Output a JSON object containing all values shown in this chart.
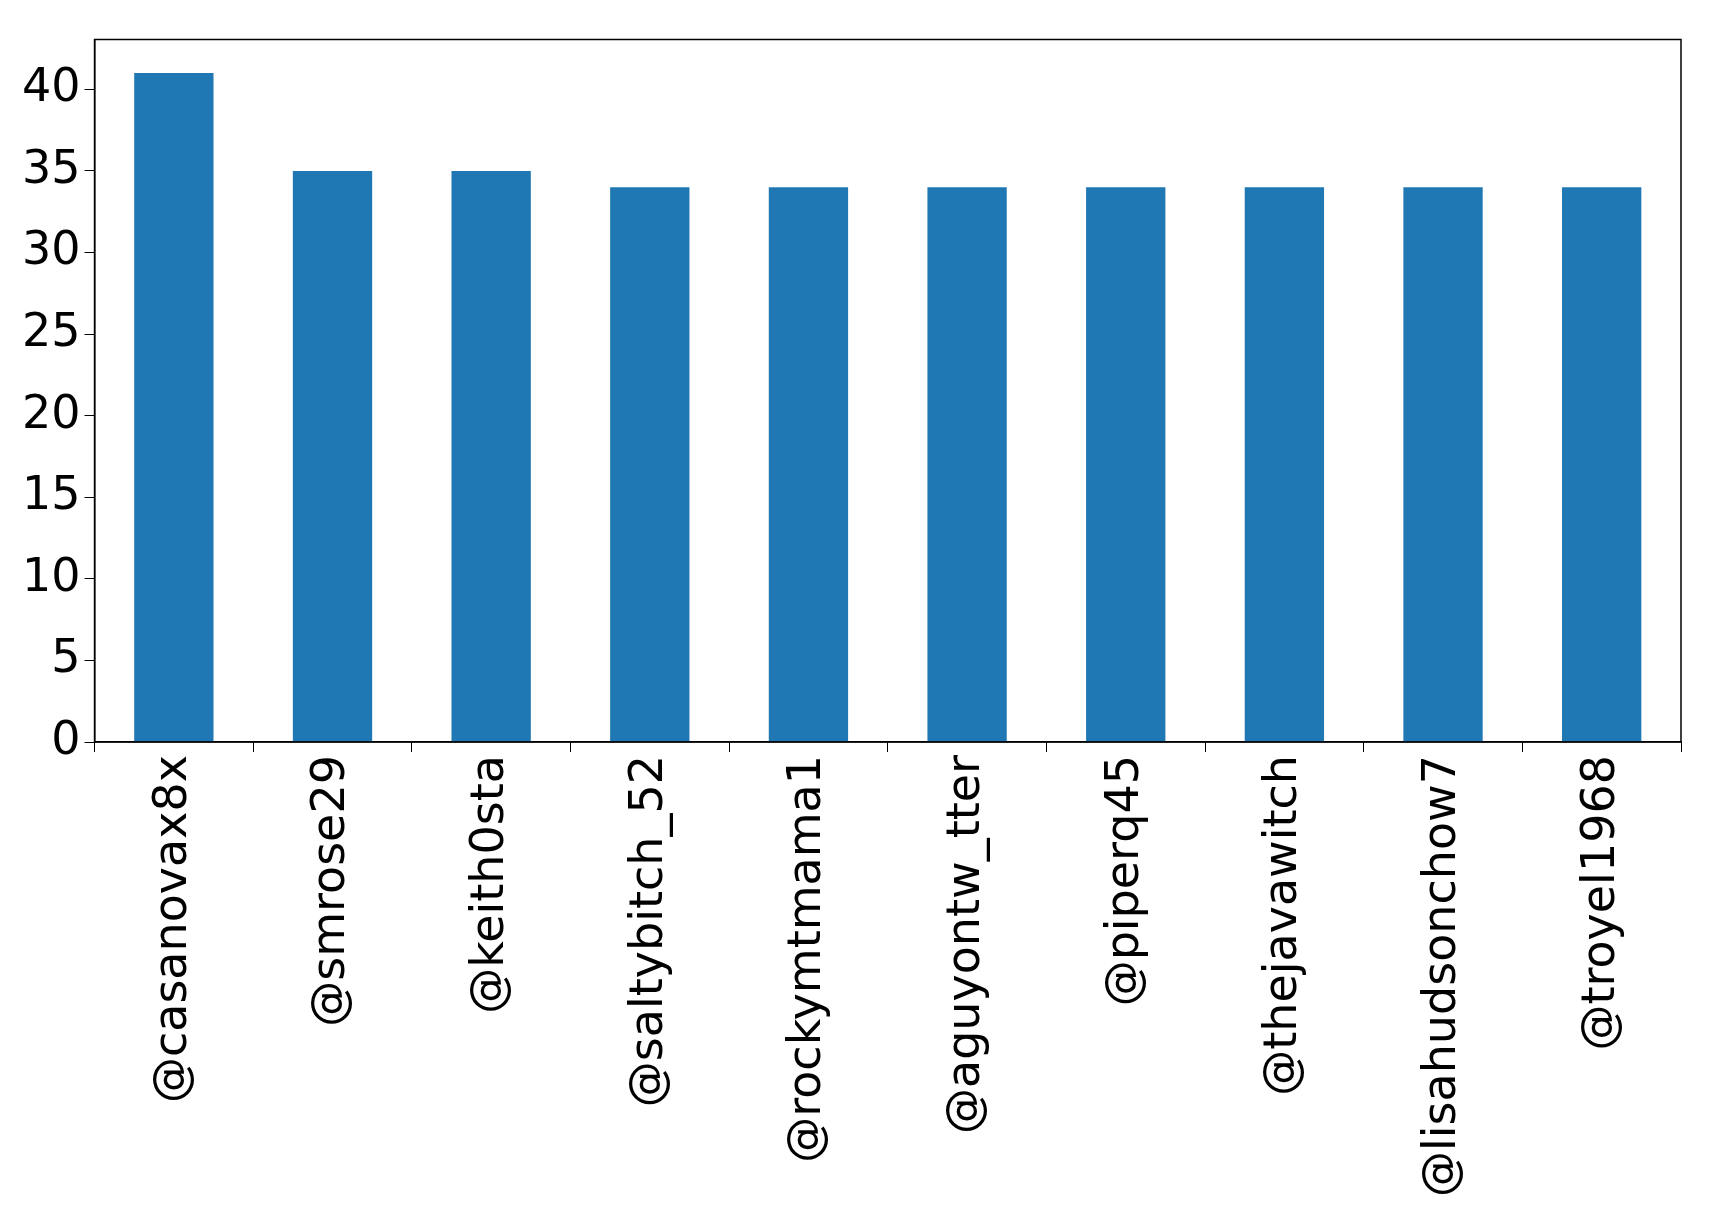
{
  "chart_data": {
    "type": "bar",
    "categories": [
      "@casanovax8x",
      "@smrose29",
      "@keith0sta",
      "@saltybitch_52",
      "@rockymtmama1",
      "@aguyontw_tter",
      "@piperq45",
      "@thejavawitch",
      "@lisahudsonchow7",
      "@troyel1968"
    ],
    "values": [
      41,
      35,
      35,
      34,
      34,
      34,
      34,
      34,
      34,
      34
    ],
    "color": "#1f77b4",
    "ylim": [
      0,
      43.05
    ],
    "yticks": [
      0,
      5,
      10,
      15,
      20,
      25,
      30,
      35,
      40
    ],
    "grid": false,
    "legend": false
  }
}
